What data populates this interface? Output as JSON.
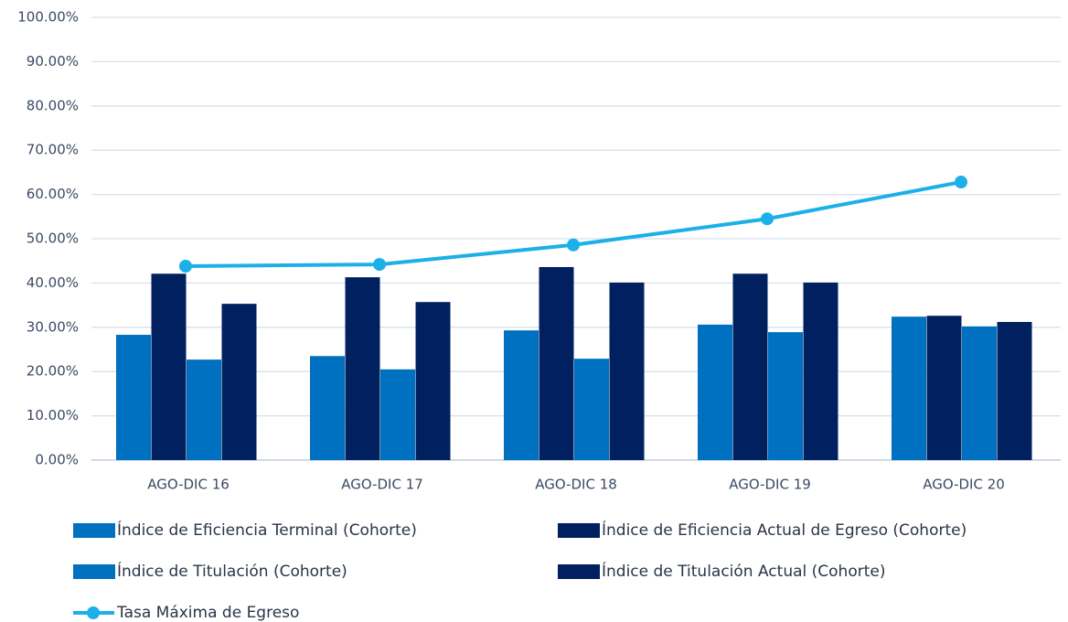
{
  "chart_data": {
    "type": "bar",
    "categories": [
      "AGO-DIC 16",
      "AGO-DIC 17",
      "AGO-DIC 18",
      "AGO-DIC 19",
      "AGO-DIC 20"
    ],
    "series": [
      {
        "name": "Índice de Eficiencia Terminal (Cohorte)",
        "color": "#0070c0",
        "values": [
          28.3,
          23.5,
          29.3,
          30.6,
          32.4
        ]
      },
      {
        "name": "Índice de Eficiencia Actual de Egreso (Cohorte)",
        "color": "#002060",
        "values": [
          42.1,
          41.3,
          43.6,
          42.1,
          32.6
        ]
      },
      {
        "name": "Índice de Titulación (Cohorte)",
        "color": "#0070c0",
        "values": [
          22.7,
          20.5,
          22.9,
          28.9,
          30.2
        ]
      },
      {
        "name": "Índice de Titulación Actual (Cohorte)",
        "color": "#002060",
        "values": [
          35.3,
          35.7,
          40.1,
          40.1,
          31.2
        ]
      },
      {
        "name": "Tasa Máxima de Egreso",
        "color": "#1cb0e8",
        "type": "line",
        "values": [
          43.8,
          44.2,
          48.6,
          54.5,
          62.8
        ]
      }
    ],
    "ylim": [
      0,
      100
    ],
    "yticks": [
      {
        "value": 0,
        "label": "0.00%"
      },
      {
        "value": 10,
        "label": "10.00%"
      },
      {
        "value": 20,
        "label": "20.00%"
      },
      {
        "value": 30,
        "label": "30.00%"
      },
      {
        "value": 40,
        "label": "40.00%"
      },
      {
        "value": 50,
        "label": "50.00%"
      },
      {
        "value": 60,
        "label": "60.00%"
      },
      {
        "value": 70,
        "label": "70.00%"
      },
      {
        "value": 80,
        "label": "80.00%"
      },
      {
        "value": 90,
        "label": "90.00%"
      },
      {
        "value": 100,
        "label": "100.00%"
      }
    ],
    "grid": true,
    "legend": "bottom"
  }
}
